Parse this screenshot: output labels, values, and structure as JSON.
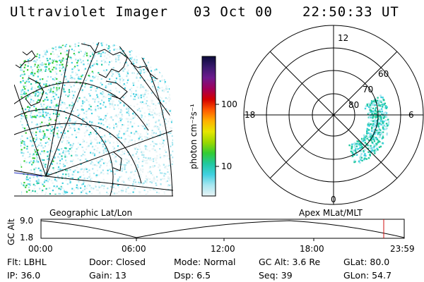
{
  "header": {
    "title": "Ultraviolet Imager",
    "date": "03 Oct 00",
    "time": "22:50:33 UT"
  },
  "colorbar": {
    "unit_label": "photon cm⁻²s⁻¹",
    "ticks": [
      "100",
      "10"
    ],
    "colors": [
      "#0b0b3b",
      "#3a1a6e",
      "#6e1a8e",
      "#a0005a",
      "#d40000",
      "#ff5a00",
      "#ffb000",
      "#e6e600",
      "#9bd800",
      "#33cc33",
      "#22c8a0",
      "#40d0e0",
      "#a8e6f0",
      "#e8f4f6"
    ]
  },
  "polar": {
    "hour_labels": {
      "top": "12",
      "right": "6",
      "bottom": "0",
      "left": "18"
    },
    "lat_labels": [
      "80",
      "70",
      "60"
    ]
  },
  "panels": {
    "left_caption": "Geographic Lat/Lon",
    "right_caption": "Apex MLat/MLT"
  },
  "altitude_plot": {
    "ylabel": "GC Alt",
    "ytick_top": "9.0",
    "ytick_bottom": "1.8",
    "xticks": [
      "00:00",
      "06:00",
      "12:00",
      "18:00",
      "23:59"
    ]
  },
  "footer": {
    "filter": "Flt: LBHL",
    "door": "Door: Closed",
    "mode": "Mode: Normal",
    "gc_alt": "GC Alt: 3.6 Re",
    "glat": "GLat:  80.0",
    "ip": "IP: 36.0",
    "gain": "Gain: 13",
    "dsp": "Dsp:    6.5",
    "seq": "Seq: 39",
    "glon": "GLon:  54.7"
  }
}
